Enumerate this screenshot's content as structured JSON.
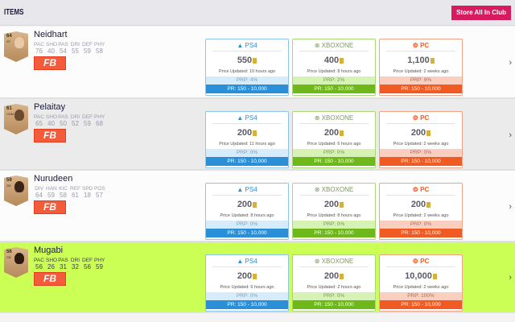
{
  "header": {
    "title": "ITEMS",
    "store_button": "Store All In Club"
  },
  "platforms": {
    "ps4": {
      "label": "PS4",
      "color": "#2a8fd6"
    },
    "xbox": {
      "label": "XBOXONE",
      "color": "#6fb81c"
    },
    "pc": {
      "label": "PC",
      "color": "#f05a23"
    }
  },
  "badge": "FB",
  "players": [
    {
      "name": "Neidhart",
      "rating": "64",
      "position": "ST",
      "stat_labels": [
        "PAC",
        "SHO",
        "PAS",
        "DRI",
        "DEF",
        "PHY"
      ],
      "stat_values": [
        "76",
        "40",
        "54",
        "55",
        "59",
        "58"
      ],
      "prices": {
        "ps4": {
          "price": "550",
          "updated": "Price Updated: 10 hours ago",
          "prp": "PRP: 4%",
          "pr": "PR: 150 - 10,000"
        },
        "xbox": {
          "price": "400",
          "updated": "Price Updated: 8 hours ago",
          "prp": "PRP: 2%",
          "pr": "PR: 150 - 10,000"
        },
        "pc": {
          "price": "1,100",
          "updated": "Price Updated: 2 weeks ago",
          "prp": "PRP: 9%",
          "pr": "PR: 150 - 10,000"
        }
      }
    },
    {
      "name": "Pelaitay",
      "rating": "61",
      "position": "CDM",
      "stat_labels": [
        "PAC",
        "SHO",
        "PAS",
        "DRI",
        "DEF",
        "PHY"
      ],
      "stat_values": [
        "65",
        "40",
        "50",
        "52",
        "59",
        "68"
      ],
      "prices": {
        "ps4": {
          "price": "200",
          "updated": "Price Updated: 11 hours ago",
          "prp": "PRP: 0%",
          "pr": "PR: 150 - 10,000"
        },
        "xbox": {
          "price": "200",
          "updated": "Price Updated: 6 hours ago",
          "prp": "PRP: 0%",
          "pr": "PR: 150 - 10,000"
        },
        "pc": {
          "price": "200",
          "updated": "Price Updated: 2 weeks ago",
          "prp": "PRP: 0%",
          "pr": "PR: 150 - 10,000"
        }
      }
    },
    {
      "name": "Nurudeen",
      "rating": "59",
      "position": "GK",
      "stat_labels": [
        "DIV",
        "HAN",
        "KIC",
        "REF",
        "SPD",
        "POS"
      ],
      "stat_values": [
        "64",
        "59",
        "58",
        "61",
        "18",
        "57"
      ],
      "prices": {
        "ps4": {
          "price": "200",
          "updated": "Price Updated: 8 hours ago",
          "prp": "PRP: 0%",
          "pr": "PR: 150 - 10,000"
        },
        "xbox": {
          "price": "200",
          "updated": "Price Updated: 8 hours ago",
          "prp": "PRP: 0%",
          "pr": "PR: 150 - 10,000"
        },
        "pc": {
          "price": "200",
          "updated": "Price Updated: 2 weeks ago",
          "prp": "PRP: 0%",
          "pr": "PR: 150 - 10,000"
        }
      }
    },
    {
      "name": "Mugabi",
      "rating": "56",
      "position": "CB",
      "stat_labels": [
        "PAC",
        "SHO",
        "PAS",
        "DRI",
        "DEF",
        "PHY"
      ],
      "stat_values": [
        "56",
        "26",
        "31",
        "32",
        "56",
        "59"
      ],
      "prices": {
        "ps4": {
          "price": "200",
          "updated": "Price Updated: 6 hours ago",
          "prp": "PRP: 0%",
          "pr": "PR: 150 - 10,000"
        },
        "xbox": {
          "price": "200",
          "updated": "Price Updated: 2 hours ago",
          "prp": "PRP: 0%",
          "pr": "PR: 150 - 10,000"
        },
        "pc": {
          "price": "10,000",
          "updated": "Price Updated: 2 weeks ago",
          "prp": "PRP: 100%",
          "pr": "PR: 150 - 10,000"
        }
      }
    }
  ]
}
